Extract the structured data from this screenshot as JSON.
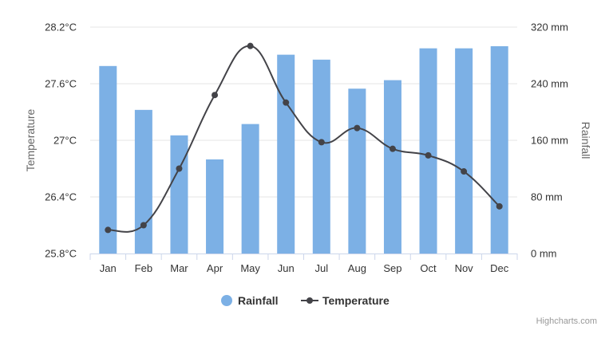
{
  "chart_data": {
    "type": "bar+line",
    "categories": [
      "Jan",
      "Feb",
      "Mar",
      "Apr",
      "May",
      "Jun",
      "Jul",
      "Aug",
      "Sep",
      "Oct",
      "Nov",
      "Dec"
    ],
    "series": [
      {
        "name": "Rainfall",
        "type": "bar",
        "axis": "right",
        "unit": "mm",
        "values": [
          265,
          203,
          167,
          133,
          183,
          281,
          274,
          233,
          245,
          290,
          290,
          293
        ]
      },
      {
        "name": "Temperature",
        "type": "line",
        "axis": "left",
        "unit": "°C",
        "values": [
          26.05,
          26.1,
          26.7,
          27.48,
          28.0,
          27.4,
          26.98,
          27.13,
          26.91,
          26.84,
          26.67,
          26.3
        ]
      }
    ],
    "left_axis": {
      "title": "Temperature",
      "min": 25.8,
      "max": 28.2,
      "ticks": [
        "25.8°C",
        "26.4°C",
        "27°C",
        "27.6°C",
        "28.2°C"
      ]
    },
    "right_axis": {
      "title": "Rainfall",
      "min": 0,
      "max": 320,
      "ticks": [
        "0 mm",
        "80 mm",
        "160 mm",
        "240 mm",
        "320 mm"
      ]
    },
    "legend_position": "bottom-center",
    "grid": true
  },
  "legend": {
    "rainfall": "Rainfall",
    "temperature": "Temperature"
  },
  "credits": "Highcharts.com",
  "colors": {
    "bar": "#7cb0e5",
    "line": "#434348",
    "grid": "#e6e6e6",
    "axis_line": "#ccd6eb"
  }
}
